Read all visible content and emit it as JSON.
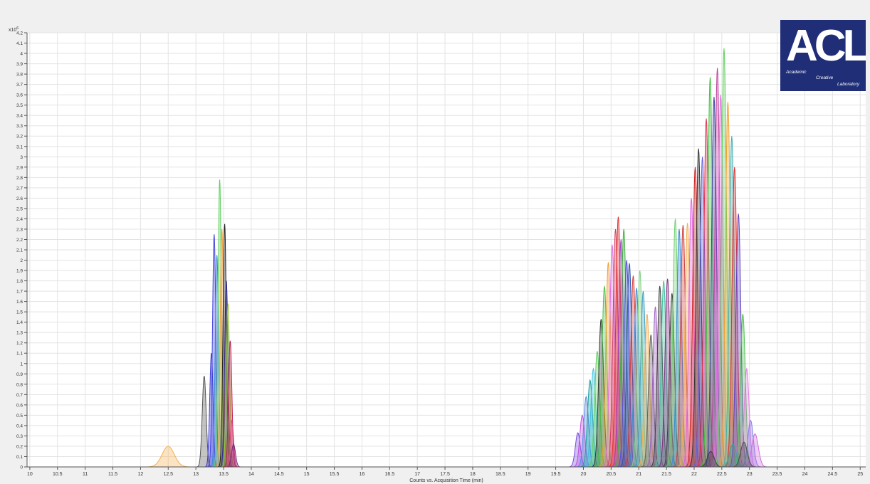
{
  "chart_data": {
    "type": "area",
    "xlabel": "Counts vs. Acquisition Time (min)",
    "ylabel": "",
    "y_multiplier_label": "x10",
    "y_multiplier_exponent": "6",
    "xlim": [
      9.95,
      25.1
    ],
    "ylim": [
      0,
      4.2
    ],
    "x_ticks": [
      10,
      10.5,
      11,
      11.5,
      12,
      12.5,
      13,
      13.5,
      14,
      14.5,
      15,
      15.5,
      16,
      16.5,
      17,
      17.5,
      18,
      18.5,
      19,
      19.5,
      20,
      20.5,
      21,
      21.5,
      22,
      22.5,
      23,
      23.5,
      24,
      24.5,
      25
    ],
    "y_ticks": [
      0,
      0.1,
      0.2,
      0.3,
      0.4,
      0.5,
      0.6,
      0.7,
      0.8,
      0.9,
      1,
      1.1,
      1.2,
      1.3,
      1.4,
      1.5,
      1.6,
      1.7,
      1.8,
      1.9,
      2,
      2.1,
      2.2,
      2.3,
      2.4,
      2.5,
      2.6,
      2.7,
      2.8,
      2.9,
      3,
      3.1,
      3.2,
      3.3,
      3.4,
      3.5,
      3.6,
      3.7,
      3.8,
      3.9,
      4,
      4.1,
      4.2
    ],
    "grid": true,
    "legend": "none",
    "peaks": [
      {
        "rt": 12.5,
        "height": 0.2,
        "width": 0.11,
        "color": "#f5b04f"
      },
      {
        "rt": 13.15,
        "height": 0.88,
        "width": 0.035,
        "color": "#555555"
      },
      {
        "rt": 13.28,
        "height": 1.1,
        "width": 0.03,
        "color": "#3a3ad0"
      },
      {
        "rt": 13.33,
        "height": 2.25,
        "width": 0.03,
        "color": "#4646e0"
      },
      {
        "rt": 13.38,
        "height": 2.05,
        "width": 0.03,
        "color": "#3a8ad8"
      },
      {
        "rt": 13.43,
        "height": 2.78,
        "width": 0.03,
        "color": "#5fd05f"
      },
      {
        "rt": 13.47,
        "height": 2.3,
        "width": 0.03,
        "color": "#f5a040"
      },
      {
        "rt": 13.52,
        "height": 2.35,
        "width": 0.03,
        "color": "#222222"
      },
      {
        "rt": 13.55,
        "height": 1.8,
        "width": 0.03,
        "color": "#2a2a90"
      },
      {
        "rt": 13.58,
        "height": 1.58,
        "width": 0.03,
        "color": "#9acd32"
      },
      {
        "rt": 13.62,
        "height": 1.22,
        "width": 0.03,
        "color": "#c02050"
      },
      {
        "rt": 13.65,
        "height": 0.45,
        "width": 0.03,
        "color": "#e04080"
      },
      {
        "rt": 13.68,
        "height": 0.22,
        "width": 0.035,
        "color": "#7a2a7a"
      },
      {
        "rt": 19.9,
        "height": 0.33,
        "width": 0.045,
        "color": "#7a4ae0"
      },
      {
        "rt": 19.98,
        "height": 0.5,
        "width": 0.045,
        "color": "#c050e0"
      },
      {
        "rt": 20.05,
        "height": 0.68,
        "width": 0.045,
        "color": "#5a8ae0"
      },
      {
        "rt": 20.12,
        "height": 0.84,
        "width": 0.045,
        "color": "#20a0a0"
      },
      {
        "rt": 20.18,
        "height": 0.95,
        "width": 0.045,
        "color": "#40c0e0"
      },
      {
        "rt": 20.25,
        "height": 1.12,
        "width": 0.045,
        "color": "#60d060"
      },
      {
        "rt": 20.32,
        "height": 1.43,
        "width": 0.045,
        "color": "#333333"
      },
      {
        "rt": 20.38,
        "height": 1.75,
        "width": 0.045,
        "color": "#50c050"
      },
      {
        "rt": 20.45,
        "height": 1.98,
        "width": 0.045,
        "color": "#f0a030"
      },
      {
        "rt": 20.52,
        "height": 2.15,
        "width": 0.045,
        "color": "#e070e0"
      },
      {
        "rt": 20.58,
        "height": 2.3,
        "width": 0.045,
        "color": "#d04060"
      },
      {
        "rt": 20.63,
        "height": 2.42,
        "width": 0.045,
        "color": "#e03030"
      },
      {
        "rt": 20.68,
        "height": 2.2,
        "width": 0.045,
        "color": "#a040c0"
      },
      {
        "rt": 20.73,
        "height": 2.3,
        "width": 0.045,
        "color": "#40b040"
      },
      {
        "rt": 20.78,
        "height": 2.0,
        "width": 0.045,
        "color": "#5050e0"
      },
      {
        "rt": 20.83,
        "height": 1.97,
        "width": 0.045,
        "color": "#3050b0"
      },
      {
        "rt": 20.9,
        "height": 1.85,
        "width": 0.045,
        "color": "#d04040"
      },
      {
        "rt": 20.96,
        "height": 1.73,
        "width": 0.045,
        "color": "#3a8ad8"
      },
      {
        "rt": 21.02,
        "height": 1.9,
        "width": 0.045,
        "color": "#80d080"
      },
      {
        "rt": 21.08,
        "height": 1.7,
        "width": 0.045,
        "color": "#40a0c0"
      },
      {
        "rt": 21.15,
        "height": 1.48,
        "width": 0.045,
        "color": "#f0b050"
      },
      {
        "rt": 21.22,
        "height": 1.28,
        "width": 0.045,
        "color": "#606060"
      },
      {
        "rt": 21.3,
        "height": 1.55,
        "width": 0.045,
        "color": "#a060c0"
      },
      {
        "rt": 21.38,
        "height": 1.75,
        "width": 0.045,
        "color": "#404040"
      },
      {
        "rt": 21.45,
        "height": 1.8,
        "width": 0.045,
        "color": "#40c0a0"
      },
      {
        "rt": 21.52,
        "height": 1.82,
        "width": 0.045,
        "color": "#803080"
      },
      {
        "rt": 21.6,
        "height": 1.68,
        "width": 0.045,
        "color": "#404040"
      },
      {
        "rt": 21.66,
        "height": 2.4,
        "width": 0.045,
        "color": "#70d070"
      },
      {
        "rt": 21.73,
        "height": 2.3,
        "width": 0.045,
        "color": "#3a8ad8"
      },
      {
        "rt": 21.8,
        "height": 2.34,
        "width": 0.045,
        "color": "#d04040"
      },
      {
        "rt": 21.88,
        "height": 2.36,
        "width": 0.045,
        "color": "#f0b050"
      },
      {
        "rt": 21.95,
        "height": 2.6,
        "width": 0.045,
        "color": "#e060e0"
      },
      {
        "rt": 22.02,
        "height": 2.9,
        "width": 0.045,
        "color": "#d02020"
      },
      {
        "rt": 22.08,
        "height": 3.08,
        "width": 0.045,
        "color": "#333333"
      },
      {
        "rt": 22.15,
        "height": 3.0,
        "width": 0.045,
        "color": "#6060e0"
      },
      {
        "rt": 22.22,
        "height": 3.37,
        "width": 0.045,
        "color": "#e03050"
      },
      {
        "rt": 22.29,
        "height": 3.77,
        "width": 0.045,
        "color": "#40c040"
      },
      {
        "rt": 22.36,
        "height": 3.58,
        "width": 0.045,
        "color": "#4040a0"
      },
      {
        "rt": 22.42,
        "height": 3.86,
        "width": 0.045,
        "color": "#c040a0"
      },
      {
        "rt": 22.48,
        "height": 3.6,
        "width": 0.045,
        "color": "#e070e0"
      },
      {
        "rt": 22.54,
        "height": 4.05,
        "width": 0.045,
        "color": "#60d060"
      },
      {
        "rt": 22.61,
        "height": 3.53,
        "width": 0.045,
        "color": "#f0a030"
      },
      {
        "rt": 22.68,
        "height": 3.2,
        "width": 0.045,
        "color": "#40b0b0"
      },
      {
        "rt": 22.73,
        "height": 2.9,
        "width": 0.045,
        "color": "#e03030"
      },
      {
        "rt": 22.8,
        "height": 2.45,
        "width": 0.045,
        "color": "#6040c0"
      },
      {
        "rt": 22.88,
        "height": 1.48,
        "width": 0.045,
        "color": "#50c050"
      },
      {
        "rt": 22.95,
        "height": 0.95,
        "width": 0.045,
        "color": "#e080e0"
      },
      {
        "rt": 23.02,
        "height": 0.45,
        "width": 0.05,
        "color": "#8080e0"
      },
      {
        "rt": 23.1,
        "height": 0.32,
        "width": 0.06,
        "color": "#d070e0"
      },
      {
        "rt": 22.3,
        "height": 0.15,
        "width": 0.06,
        "color": "#404040"
      },
      {
        "rt": 22.7,
        "height": 0.22,
        "width": 0.06,
        "color": "#40a0a0"
      },
      {
        "rt": 22.9,
        "height": 0.24,
        "width": 0.06,
        "color": "#505050"
      }
    ]
  },
  "logo": {
    "main": "ACL",
    "line1": "Academic",
    "line2": "Creative",
    "line3": "Laboratory"
  }
}
